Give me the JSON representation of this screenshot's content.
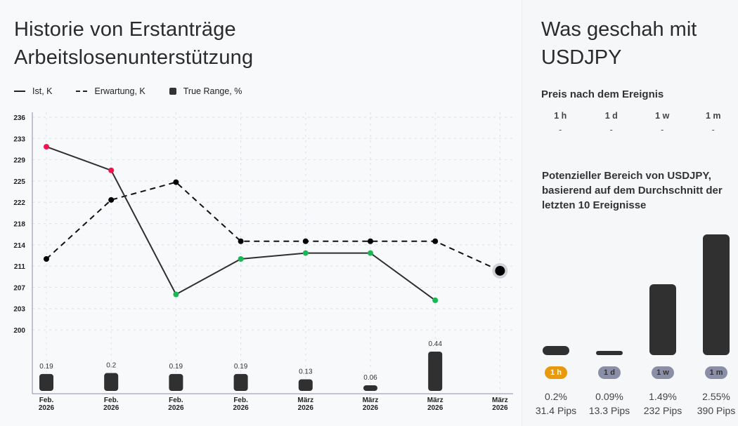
{
  "left": {
    "title_line1": "Historie von Erstanträge",
    "title_line2": "Arbeitslosenunterstützung",
    "legend": [
      {
        "label": "Ist, K",
        "icon": "solid-line-icon"
      },
      {
        "label": "Erwartung, K",
        "icon": "dashed-line-icon"
      },
      {
        "label": "True Range, %",
        "icon": "square-icon"
      }
    ]
  },
  "chart_data": {
    "type": "line",
    "title": "Historie von Erstanträge Arbeitslosenunterstützung",
    "categories": [
      "Feb.\n2026",
      "Feb.\n2026",
      "Feb.\n2026",
      "Feb.\n2026",
      "März\n2026",
      "März\n2026",
      "März\n2026",
      "März\n2026"
    ],
    "category_lines": [
      [
        "Feb.",
        "2026"
      ],
      [
        "Feb.",
        "2026"
      ],
      [
        "Feb.",
        "2026"
      ],
      [
        "Feb.",
        "2026"
      ],
      [
        "März",
        "2026"
      ],
      [
        "März",
        "2026"
      ],
      [
        "März",
        "2026"
      ],
      [
        "März",
        "2026"
      ]
    ],
    "yticks": [
      236,
      233,
      229,
      225,
      222,
      218,
      214,
      211,
      207,
      203,
      200
    ],
    "ylim": [
      200,
      236
    ],
    "grid": true,
    "legend_position": "top-left",
    "series": [
      {
        "name": "Ist, K",
        "style": "solid",
        "values": [
          231,
          227,
          206,
          212,
          213,
          213,
          205,
          null
        ],
        "point_colors": [
          "#f0134d",
          "#f0134d",
          "#18b854",
          "#18b854",
          "#18b854",
          "#18b854",
          "#18b854",
          null
        ]
      },
      {
        "name": "Erwartung, K",
        "style": "dashed",
        "values": [
          212,
          222,
          225,
          215,
          215,
          215,
          215,
          210
        ],
        "highlight_last": true
      },
      {
        "name": "True Range, %",
        "type": "bar",
        "values": [
          0.19,
          0.2,
          0.19,
          0.19,
          0.13,
          0.06,
          0.44,
          null
        ],
        "labels": [
          "0.19",
          "0.2",
          "0.19",
          "0.19",
          "0.13",
          "0.06",
          "0.44",
          ""
        ]
      }
    ],
    "colors": {
      "line": "#2f2f2f",
      "dashed": "#111111",
      "above": "#f0134d",
      "below": "#18b854",
      "bar": "#303030",
      "axis": "#8a8ea6"
    }
  },
  "right": {
    "title_line1": "Was geschah mit",
    "title_line2": "USDJPY",
    "price_after_title": "Preis nach dem Ereignis",
    "periods": [
      {
        "label": "1 h",
        "value": "-"
      },
      {
        "label": "1 d",
        "value": "-"
      },
      {
        "label": "1 w",
        "value": "-"
      },
      {
        "label": "1 m",
        "value": "-"
      }
    ],
    "range_title": "Potenzieller Bereich von USDJPY, basierend auf dem Durchschnitt der letzten 10 Ereignisse",
    "range": [
      {
        "label": "1 h",
        "percent": "0.2%",
        "pct_value": 0.2,
        "pips": "31.4 Pips",
        "active": true
      },
      {
        "label": "1 d",
        "percent": "0.09%",
        "pct_value": 0.09,
        "pips": "13.3 Pips",
        "active": false
      },
      {
        "label": "1 w",
        "percent": "1.49%",
        "pct_value": 1.49,
        "pips": "232 Pips",
        "active": false
      },
      {
        "label": "1 m",
        "percent": "2.55%",
        "pct_value": 2.55,
        "pips": "390 Pips",
        "active": false
      }
    ],
    "colors": {
      "active_pill": "#e99a0c",
      "inactive_pill": "#8a8ea6"
    }
  }
}
